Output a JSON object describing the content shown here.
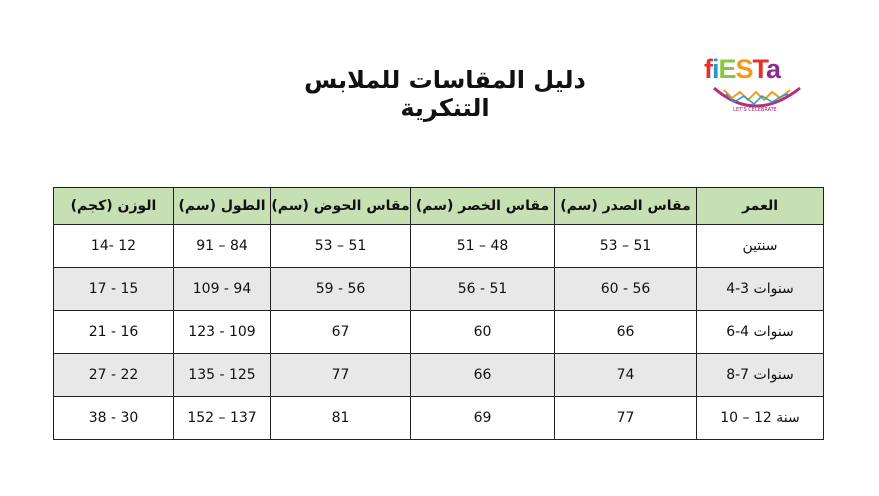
{
  "title": "دليل المقاسات للملابس التنكرية",
  "logo": {
    "text": "fiESTa",
    "tagline": "LET'S CELEBRATE",
    "colors": [
      "#e5312b",
      "#1d9bd7",
      "#8cc63e",
      "#f39a1e",
      "#8b2c8c"
    ]
  },
  "table": {
    "headers": [
      "العمر",
      "مقاس الصدر  (سم)",
      "مقاس الخصر (سم)",
      "مقاس الحوض (سم)",
      "الطول (سم)",
      "الوزن (كجم)"
    ],
    "rows": [
      [
        "سنتين",
        "53 – 51",
        "51 – 48",
        "53 – 51",
        "91 – 84",
        "14- 12"
      ],
      [
        "4-3 سنوات",
        "60 - 56",
        "56 - 51",
        "59 - 56",
        "109 - 94",
        "17 - 15"
      ],
      [
        "6-4 سنوات",
        "66",
        "60",
        "67",
        "123 - 109",
        "21 - 16"
      ],
      [
        "8-7 سنوات",
        "74",
        "66",
        "77",
        "135 - 125",
        "27 - 22"
      ],
      [
        "10 – 12 سنة",
        "77",
        "69",
        "81",
        "152 – 137",
        "38 - 30"
      ]
    ],
    "header_color": "#c6e0b4",
    "alt_row_color": "#e8e8e8"
  }
}
